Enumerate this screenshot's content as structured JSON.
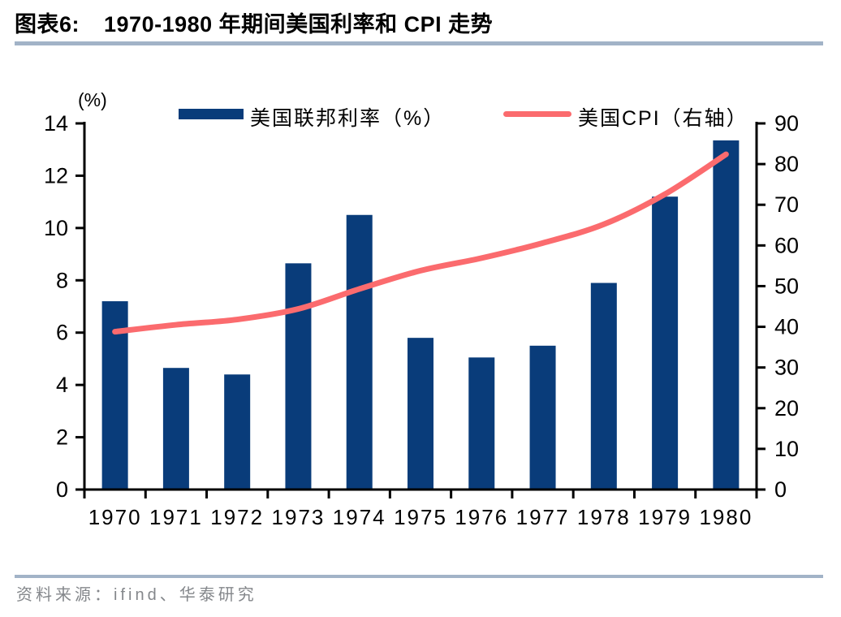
{
  "header": {
    "figure_label": "图表6:",
    "title": "1970-1980 年期间美国利率和 CPI 走势"
  },
  "legend": {
    "bar_label": "美国联邦利率（%）",
    "line_label": "美国CPI（右轴）"
  },
  "axis_unit_label": "(%)",
  "footer": {
    "source": "资料来源：ifind、华泰研究"
  },
  "colors": {
    "rule": "#a2b3c7",
    "footer_text": "#84878b",
    "axis": "#000000"
  },
  "chart_data": {
    "type": "bar",
    "title": "1970-1980 年期间美国利率和 CPI 走势",
    "categories": [
      "1970",
      "1971",
      "1972",
      "1973",
      "1974",
      "1975",
      "1976",
      "1977",
      "1978",
      "1979",
      "1980"
    ],
    "series": [
      {
        "name": "美国联邦利率（%）",
        "type": "bar",
        "axis": "left",
        "color": "#093c7a",
        "values": [
          7.2,
          4.65,
          4.4,
          8.65,
          10.5,
          5.8,
          5.05,
          5.5,
          7.9,
          11.2,
          13.35
        ]
      },
      {
        "name": "美国CPI（右轴）",
        "type": "line",
        "axis": "right",
        "color": "#fb6b6e",
        "values": [
          38.8,
          40.5,
          41.8,
          44.4,
          49.3,
          53.8,
          56.9,
          60.6,
          65.2,
          72.6,
          82.4
        ]
      }
    ],
    "left_axis": {
      "label": "(%)",
      "min": 0,
      "max": 14,
      "tick_step": 2
    },
    "right_axis": {
      "min": 0,
      "max": 90,
      "tick_step": 10
    },
    "legend_position": "top",
    "grid": false
  }
}
